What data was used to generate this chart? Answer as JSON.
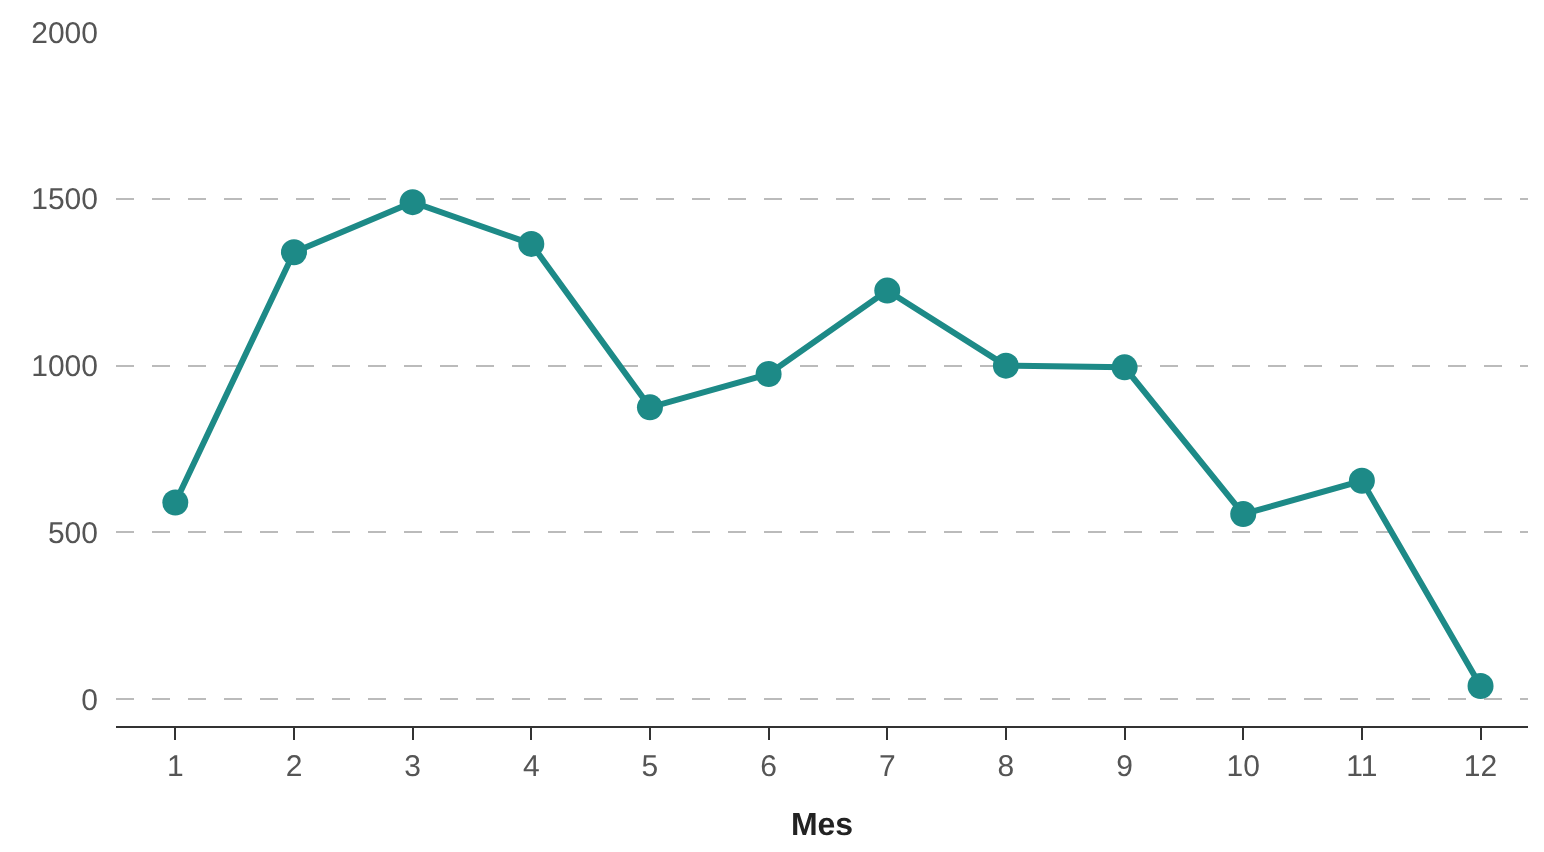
{
  "chart_data": {
    "type": "line",
    "xlabel": "Mes",
    "x": [
      1,
      2,
      3,
      4,
      5,
      6,
      7,
      8,
      9,
      10,
      11,
      12
    ],
    "series": [
      {
        "color": "#1d8a87",
        "values": [
          590,
          1340,
          1490,
          1365,
          875,
          975,
          1225,
          1000,
          995,
          555,
          655,
          40
        ]
      }
    ],
    "xlim": [
      0.5,
      12.4
    ],
    "xticks": [
      1,
      2,
      3,
      4,
      5,
      6,
      7,
      8,
      9,
      10,
      11,
      12
    ],
    "ylim": [
      -80,
      2000
    ],
    "yticks": [
      0,
      500,
      1000,
      1500,
      2000
    ],
    "grid": "y",
    "marker": "circle",
    "line_style": "solid",
    "legend": false
  }
}
